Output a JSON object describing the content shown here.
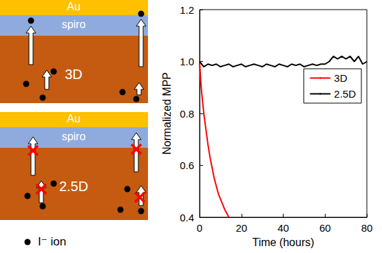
{
  "diagram": {
    "panels": [
      {
        "layers": [
          "Au",
          "spiro",
          "3D"
        ]
      },
      {
        "layers": [
          "Au",
          "spiro",
          "2.5D"
        ]
      }
    ],
    "legend_label": "I⁻ ion"
  },
  "chart_data": {
    "type": "line",
    "xlabel": "Time (hours)",
    "ylabel": "Normalized MPP",
    "xlim": [
      0,
      80
    ],
    "xticks": [
      0,
      20,
      40,
      60,
      80
    ],
    "ylim": [
      0.4,
      1.2
    ],
    "yticks": [
      0.4,
      0.6,
      0.8,
      {
        "value": 1,
        "label": "1.0"
      },
      1.2
    ],
    "legend": "upper right",
    "grid": false,
    "series": [
      {
        "name": "3D",
        "color": "#ff0000",
        "x": [
          0,
          0.5,
          1,
          2,
          3,
          4,
          5,
          6,
          7,
          8,
          9,
          10,
          11,
          12,
          13,
          14
        ],
        "values": [
          1.0,
          0.93,
          0.88,
          0.8,
          0.74,
          0.68,
          0.63,
          0.59,
          0.55,
          0.52,
          0.49,
          0.47,
          0.45,
          0.43,
          0.415,
          0.4
        ]
      },
      {
        "name": "2.5D",
        "color": "#000000",
        "x": [
          0,
          2,
          4,
          6,
          8,
          10,
          12,
          14,
          16,
          18,
          20,
          22,
          24,
          26,
          28,
          30,
          32,
          34,
          36,
          38,
          40,
          42,
          44,
          46,
          48,
          50,
          52,
          54,
          56,
          58,
          60,
          62,
          64,
          66,
          68,
          70,
          72,
          74,
          76,
          78,
          80
        ],
        "values": [
          1.0,
          0.98,
          0.99,
          0.985,
          0.99,
          0.98,
          0.985,
          0.99,
          0.98,
          0.985,
          0.99,
          0.98,
          0.985,
          0.99,
          0.985,
          0.98,
          0.99,
          0.985,
          0.98,
          0.99,
          0.985,
          0.98,
          0.99,
          0.985,
          0.99,
          0.98,
          0.985,
          0.99,
          0.985,
          0.99,
          0.99,
          1.0,
          1.02,
          1.01,
          1.02,
          1.01,
          1.02,
          1.0,
          1.02,
          0.99,
          1.0
        ]
      }
    ]
  }
}
